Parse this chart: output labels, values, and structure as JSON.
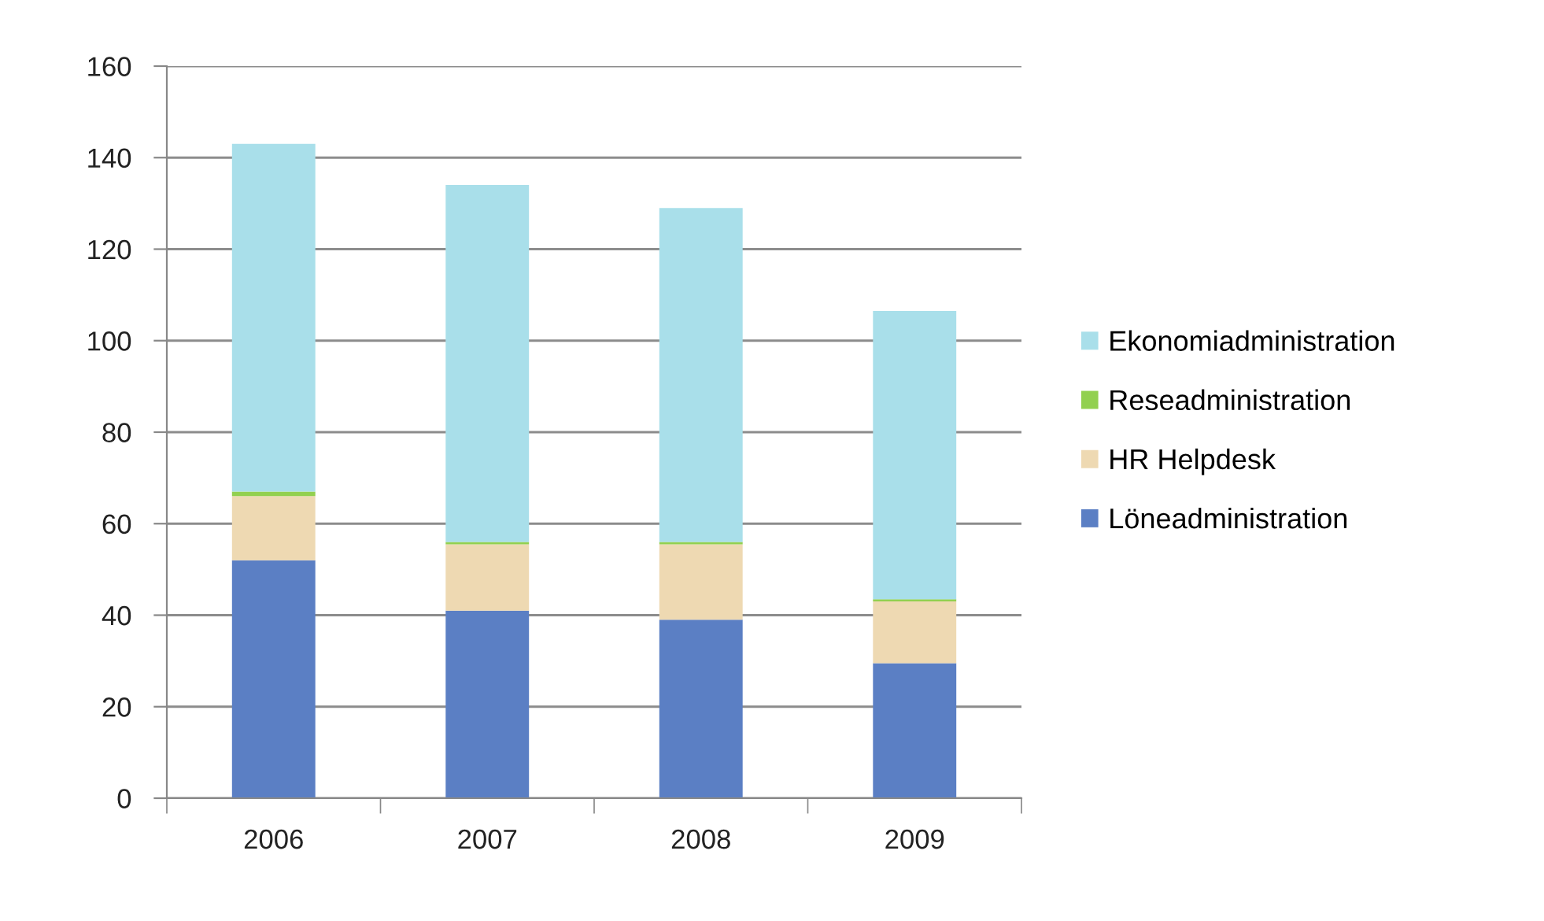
{
  "chart_data": {
    "type": "bar",
    "stacked": true,
    "categories": [
      "2006",
      "2007",
      "2008",
      "2009"
    ],
    "series": [
      {
        "name": "Löneadministration",
        "color": "#5b7fc4",
        "values": [
          52,
          41,
          39,
          29.5
        ]
      },
      {
        "name": "HR Helpdesk",
        "color": "#eed9b2",
        "values": [
          14,
          14.5,
          16.5,
          13.5
        ]
      },
      {
        "name": "Reseadministration",
        "color": "#92d050",
        "values": [
          1,
          0.5,
          0.5,
          0.5
        ]
      },
      {
        "name": "Ekonomiadministration",
        "color": "#a9dfea",
        "values": [
          76,
          78,
          73,
          63
        ]
      }
    ],
    "ylim": [
      0,
      160
    ],
    "yticks": [
      0,
      20,
      40,
      60,
      80,
      100,
      120,
      140,
      160
    ],
    "grid": "y",
    "legend": "right"
  }
}
